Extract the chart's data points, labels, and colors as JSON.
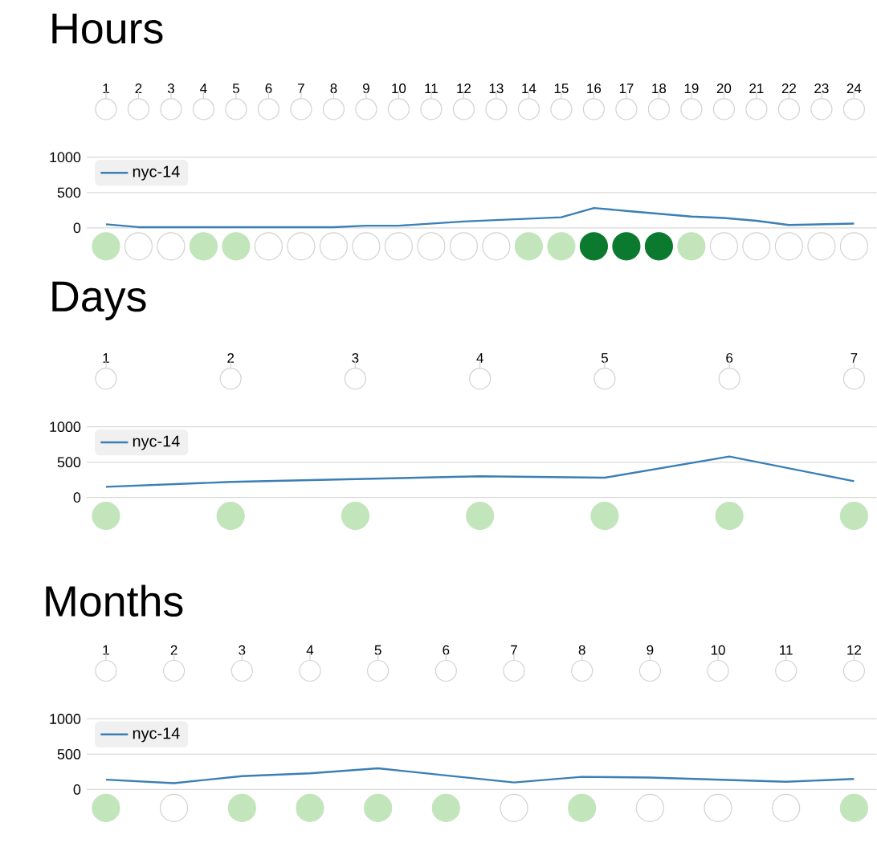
{
  "chart_data": [
    {
      "type": "line",
      "title": "Hours",
      "categories": [
        "1",
        "2",
        "3",
        "4",
        "5",
        "6",
        "7",
        "8",
        "9",
        "10",
        "11",
        "12",
        "13",
        "14",
        "15",
        "16",
        "17",
        "18",
        "19",
        "20",
        "21",
        "22",
        "23",
        "24"
      ],
      "series": [
        {
          "name": "nyc-14",
          "color": "#3a7fb5",
          "values": [
            50,
            10,
            10,
            10,
            10,
            10,
            10,
            10,
            30,
            30,
            60,
            90,
            110,
            130,
            150,
            280,
            240,
            200,
            160,
            140,
            100,
            40,
            50,
            60
          ]
        }
      ],
      "ylim": [
        0,
        1000
      ],
      "yticks": [
        0,
        500,
        1000
      ],
      "grid": "y",
      "legend": "top left"
    },
    {
      "type": "line",
      "title": "Days",
      "categories": [
        "1",
        "2",
        "3",
        "4",
        "5",
        "6",
        "7"
      ],
      "series": [
        {
          "name": "nyc-14",
          "color": "#3a7fb5",
          "values": [
            150,
            220,
            260,
            300,
            280,
            580,
            230
          ]
        }
      ],
      "ylim": [
        0,
        1000
      ],
      "yticks": [
        0,
        500,
        1000
      ],
      "grid": "y",
      "legend": "top left"
    },
    {
      "type": "line",
      "title": "Months",
      "categories": [
        "1",
        "2",
        "3",
        "4",
        "5",
        "6",
        "7",
        "8",
        "9",
        "10",
        "11",
        "12"
      ],
      "series": [
        {
          "name": "nyc-14",
          "color": "#3a7fb5",
          "values": [
            140,
            90,
            190,
            230,
            300,
            200,
            100,
            180,
            170,
            140,
            110,
            150
          ]
        }
      ],
      "ylim": [
        0,
        1000
      ],
      "yticks": [
        0,
        500,
        1000
      ],
      "grid": "y",
      "legend": "top left"
    }
  ]
}
